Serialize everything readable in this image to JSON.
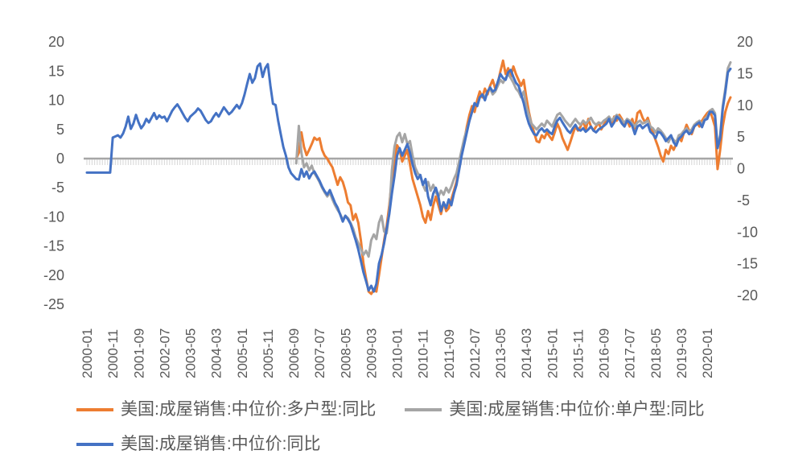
{
  "chart_data": {
    "type": "line",
    "title": "",
    "x_range": {
      "start": "2000-01",
      "end": "2020-10",
      "total_months": 250,
      "tick_every_months": 10
    },
    "x_tick_labels": [
      "2000-01",
      "2000-11",
      "2001-09",
      "2002-07",
      "2003-05",
      "2004-03",
      "2005-01",
      "2005-11",
      "2006-09",
      "2007-07",
      "2008-05",
      "2009-03",
      "2010-01",
      "2010-11",
      "2011-09",
      "2012-07",
      "2013-05",
      "2014-03",
      "2015-01",
      "2015-11",
      "2016-09",
      "2017-07",
      "2018-05",
      "2019-03",
      "2020-01"
    ],
    "left_axis": {
      "ticks": [
        20,
        15,
        10,
        5,
        0,
        -5,
        -10,
        -15,
        -20,
        -25
      ],
      "min": -25,
      "max": 20
    },
    "right_axis": {
      "ticks": [
        20,
        15,
        10,
        5,
        0,
        -5,
        -10,
        -15,
        -20
      ],
      "min": -20,
      "max": 20
    },
    "grid": "none",
    "zero_line_color": "#a6a6a6",
    "tick_comb_color": "#d9d9d9",
    "label_color": "#595959",
    "legend_position": "bottom",
    "series": [
      {
        "name": "美国:成屋销售:中位价:多户型:同比",
        "color": "#ED7D31",
        "start_month": "2006-10",
        "start_index": 81,
        "values": [
          0,
          1.0,
          4.5,
          2.0,
          0.6,
          1.5,
          2.5,
          3.6,
          3.2,
          3.5,
          1.5,
          0.5,
          0,
          -0.8,
          -1.5,
          -3.0,
          -4.5,
          -3.2,
          -4.0,
          -5.5,
          -7.5,
          -8.0,
          -10.5,
          -9.5,
          -11.0,
          -14.0,
          -18.0,
          -20.5,
          -22.8,
          -23.2,
          -22.5,
          -22.8,
          -20.0,
          -17.0,
          -14.0,
          -11.5,
          -8.0,
          -3.5,
          -0.5,
          2.3,
          1.5,
          -0.5,
          0.5,
          1.5,
          -1.0,
          -3.5,
          -5.0,
          -6.5,
          -8.0,
          -10.0,
          -11.0,
          -9.0,
          -10.5,
          -8.0,
          -6.5,
          -8.0,
          -9.5,
          -7.5,
          -9.0,
          -8.5,
          -7.0,
          -5.5,
          -4.0,
          -1.5,
          1.0,
          3.0,
          5.5,
          7.5,
          9.0,
          8.0,
          10.0,
          11.5,
          10.5,
          12.0,
          11.0,
          12.5,
          13.5,
          12.0,
          13.0,
          15.0,
          16.8,
          14.5,
          15.5,
          14.0,
          15.8,
          14.5,
          13.5,
          12.5,
          13.5,
          10.5,
          8.0,
          6.0,
          4.5,
          3.0,
          2.8,
          4.0,
          3.5,
          4.5,
          3.8,
          3.2,
          4.5,
          6.0,
          5.0,
          3.5,
          2.5,
          1.5,
          2.8,
          4.2,
          5.5,
          4.8,
          5.5,
          6.5,
          5.0,
          6.8,
          5.5,
          4.8,
          5.5,
          6.2,
          5.0,
          5.8,
          6.5,
          7.0,
          6.0,
          7.2,
          6.5,
          7.5,
          6.8,
          5.8,
          6.6,
          5.5,
          6.8,
          5.2,
          7.8,
          8.2,
          7.0,
          6.2,
          7.0,
          5.5,
          4.5,
          3.2,
          2.0,
          0.5,
          -0.5,
          1.5,
          0.8,
          2.2,
          1.5,
          2.5,
          3.8,
          3.0,
          4.5,
          5.8,
          4.8,
          4.2,
          5.5,
          6.2,
          5.5,
          6.5,
          7.2,
          7.8,
          8.2,
          7.0,
          5.5,
          -1.8,
          1.5,
          5.5,
          8.0,
          9.5,
          10.5
        ]
      },
      {
        "name": "美国:成屋销售:中位价:单户型:同比",
        "color": "#A5A5A5",
        "start_month": "2006-10",
        "start_index": 81,
        "values": [
          -0.8,
          5.6,
          1.0,
          -1.5,
          -0.8,
          -2.0,
          -1.2,
          -2.5,
          -3.2,
          -4.0,
          -5.0,
          -5.8,
          -6.5,
          -5.8,
          -7.0,
          -8.0,
          -8.8,
          -9.5,
          -10.5,
          -9.8,
          -10.2,
          -11.0,
          -12.0,
          -13.5,
          -14.5,
          -15.5,
          -16.5,
          -15.8,
          -16.8,
          -14.0,
          -13.0,
          -13.8,
          -11.0,
          -9.8,
          -12.5,
          -12.8,
          -9.0,
          -2.0,
          2.0,
          3.8,
          4.4,
          2.8,
          4.2,
          2.5,
          3.0,
          0.5,
          -1.5,
          -2.5,
          -3.0,
          -4.5,
          -5.5,
          -4.0,
          -5.5,
          -4.5,
          -5.8,
          -6.5,
          -5.5,
          -6.2,
          -5.0,
          -5.8,
          -4.8,
          -3.5,
          -2.5,
          -0.5,
          1.5,
          3.5,
          5.0,
          6.5,
          8.0,
          9.5,
          9.0,
          10.5,
          11.0,
          10.5,
          11.5,
          12.0,
          11.0,
          11.5,
          12.5,
          13.5,
          13.0,
          13.8,
          14.5,
          13.8,
          13.0,
          12.0,
          11.5,
          10.5,
          11.5,
          9.0,
          7.5,
          6.0,
          5.5,
          5.0,
          5.5,
          6.0,
          5.5,
          6.5,
          6.0,
          5.5,
          6.5,
          7.5,
          7.8,
          7.2,
          6.5,
          6.0,
          5.5,
          6.2,
          6.8,
          6.2,
          5.8,
          6.5,
          6.0,
          6.5,
          7.0,
          6.2,
          5.8,
          6.2,
          6.0,
          6.5,
          6.8,
          7.2,
          6.5,
          7.0,
          7.5,
          7.0,
          6.5,
          6.2,
          6.8,
          6.5,
          6.0,
          5.5,
          6.2,
          6.5,
          6.0,
          6.2,
          6.5,
          5.5,
          5.2,
          4.5,
          5.2,
          4.8,
          4.2,
          3.5,
          2.8,
          3.8,
          3.2,
          2.8,
          4.0,
          4.2,
          4.8,
          5.2,
          4.6,
          5.0,
          5.8,
          6.2,
          6.5,
          5.8,
          6.8,
          7.2,
          8.2,
          8.5,
          7.8,
          2.2,
          4.0,
          9.0,
          12.0,
          15.5,
          16.5
        ]
      },
      {
        "name": "美国:成屋销售:中位价:同比",
        "color": "#4472C4",
        "start_month": "2000-01",
        "start_index": 0,
        "values": [
          -2.4,
          -2.4,
          -2.4,
          -2.4,
          -2.4,
          -2.4,
          -2.4,
          -2.4,
          -2.4,
          -2.4,
          3.6,
          3.8,
          4.0,
          3.6,
          4.3,
          5.5,
          7.2,
          5.1,
          6.0,
          7.5,
          6.2,
          5.2,
          5.8,
          6.8,
          6.2,
          7.0,
          7.8,
          6.8,
          7.4,
          7.0,
          7.2,
          6.4,
          7.3,
          8.2,
          8.8,
          9.3,
          8.6,
          7.8,
          7.0,
          6.4,
          7.2,
          7.6,
          8.0,
          8.6,
          8.2,
          7.4,
          6.6,
          6.1,
          6.4,
          7.2,
          7.8,
          7.2,
          8.0,
          8.8,
          8.2,
          7.6,
          8.0,
          8.6,
          9.2,
          8.6,
          9.5,
          11.0,
          12.8,
          14.5,
          13.0,
          13.8,
          15.8,
          16.3,
          14.0,
          15.5,
          16.2,
          12.5,
          9.4,
          9.2,
          6.5,
          4.2,
          2.0,
          0.5,
          -1.5,
          -2.5,
          -3.0,
          -3.5,
          -3.6,
          -1.8,
          -3.1,
          -2.2,
          -3.4,
          -2.6,
          -2.2,
          -3.0,
          -3.8,
          -4.8,
          -5.6,
          -6.2,
          -5.4,
          -6.5,
          -7.6,
          -8.4,
          -9.6,
          -10.8,
          -9.8,
          -10.4,
          -11.2,
          -12.6,
          -14.0,
          -15.6,
          -17.5,
          -19.5,
          -21.0,
          -22.6,
          -21.8,
          -22.8,
          -21.5,
          -18.0,
          -16.5,
          -14.5,
          -12.0,
          -9.5,
          -6.0,
          -3.0,
          0.5,
          1.8,
          0.5,
          1.5,
          2.5,
          1.0,
          -1.0,
          -2.5,
          -3.5,
          -2.8,
          -4.5,
          -3.5,
          -6.5,
          -8.0,
          -6.0,
          -5.0,
          -6.5,
          -9.0,
          -7.5,
          -8.5,
          -7.0,
          -8.0,
          -6.0,
          -4.5,
          -2.0,
          0.5,
          2.5,
          4.5,
          6.5,
          8.0,
          9.5,
          9.0,
          10.5,
          11.0,
          10.0,
          11.5,
          12.2,
          11.5,
          11.8,
          13.2,
          14.5,
          13.8,
          13.5,
          14.8,
          15.2,
          14.0,
          13.0,
          12.5,
          11.0,
          9.5,
          7.5,
          6.0,
          5.0,
          4.2,
          4.0,
          4.8,
          5.2,
          4.6,
          5.0,
          4.5,
          4.2,
          5.5,
          6.5,
          7.0,
          6.2,
          5.5,
          4.8,
          4.4,
          5.2,
          5.8,
          5.0,
          4.8,
          5.2,
          4.6,
          5.0,
          5.5,
          4.8,
          4.5,
          5.0,
          5.3,
          5.6,
          6.0,
          6.8,
          5.5,
          6.2,
          7.2,
          6.8,
          6.0,
          5.5,
          6.5,
          6.2,
          5.6,
          4.2,
          5.5,
          5.8,
          5.2,
          5.6,
          5.9,
          4.6,
          4.2,
          3.5,
          4.6,
          4.4,
          3.8,
          3.0,
          3.5,
          4.0,
          2.8,
          2.2,
          3.4,
          3.8,
          4.4,
          4.8,
          4.2,
          4.5,
          5.5,
          5.9,
          6.2,
          5.4,
          6.6,
          6.8,
          8.0,
          8.0,
          7.4,
          1.8,
          3.5,
          8.5,
          11.4,
          14.8,
          15.4
        ]
      }
    ]
  },
  "legend": {
    "row1": [
      "美国:成屋销售:中位价:多户型:同比",
      "美国:成屋销售:中位价:单户型:同比"
    ],
    "row2": [
      "美国:成屋销售:中位价:同比"
    ]
  }
}
